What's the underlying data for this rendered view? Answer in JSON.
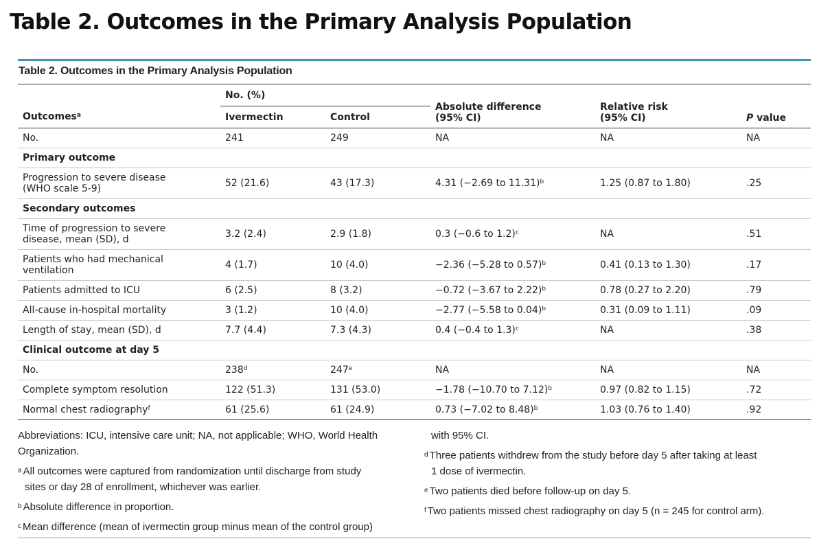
{
  "page_title": "Table 2.  Outcomes in the Primary Analysis Population",
  "caption": "Table 2. Outcomes in the Primary Analysis Population",
  "header": {
    "group_label": "No. (%)",
    "outcomes": "Outcomes",
    "outcomes_sup": "a",
    "ivermectin": "Ivermectin",
    "control": "Control",
    "absdiff_1": "Absolute difference",
    "absdiff_2": "(95% CI)",
    "rr_1": "Relative risk",
    "rr_2": "(95% CI)",
    "p_italic": "P",
    "p_rest": " value"
  },
  "rows": {
    "no": {
      "label": "No.",
      "iv": "241",
      "ctrl": "249",
      "diff": "NA",
      "rr": "NA",
      "p": "NA"
    },
    "primary_header": "Primary outcome",
    "progression": {
      "label1": "Progression to severe disease",
      "label2": "(WHO scale 5-9)",
      "iv": "52 (21.6)",
      "ctrl": "43 (17.3)",
      "diff": "4.31 (−2.69 to 11.31)",
      "diff_sup": "b",
      "rr": "1.25 (0.87 to 1.80)",
      "p": ".25"
    },
    "secondary_header": "Secondary outcomes",
    "time_prog": {
      "label1": "Time of progression to severe",
      "label2": "disease, mean (SD), d",
      "iv": "3.2 (2.4)",
      "ctrl": "2.9 (1.8)",
      "diff": "0.3 (−0.6 to 1.2)",
      "diff_sup": "c",
      "rr": "NA",
      "p": ".51"
    },
    "mech_vent": {
      "label1": "Patients who had mechanical",
      "label2": "ventilation",
      "iv": "4 (1.7)",
      "ctrl": "10 (4.0)",
      "diff": "−2.36 (−5.28 to 0.57)",
      "diff_sup": "b",
      "rr": "0.41 (0.13 to 1.30)",
      "p": ".17"
    },
    "icu": {
      "label": "Patients admitted to ICU",
      "iv": "6 (2.5)",
      "ctrl": "8 (3.2)",
      "diff": "−0.72 (−3.67 to 2.22)",
      "diff_sup": "b",
      "rr": "0.78 (0.27 to 2.20)",
      "p": ".79"
    },
    "mortality": {
      "label": "All-cause in-hospital mortality",
      "iv": "3 (1.2)",
      "ctrl": "10 (4.0)",
      "diff": "−2.77 (−5.58 to 0.04)",
      "diff_sup": "b",
      "rr": "0.31 (0.09 to 1.11)",
      "p": ".09"
    },
    "los": {
      "label": "Length of stay, mean (SD), d",
      "iv": "7.7 (4.4)",
      "ctrl": "7.3 (4.3)",
      "diff": "0.4 (−0.4 to 1.3)",
      "diff_sup": "c",
      "rr": "NA",
      "p": ".38"
    },
    "day5_header": "Clinical outcome at day 5",
    "day5_no": {
      "label": "No.",
      "iv": "238",
      "iv_sup": "d",
      "ctrl": "247",
      "ctrl_sup": "e",
      "diff": "NA",
      "rr": "NA",
      "p": "NA"
    },
    "symptom": {
      "label": "Complete symptom resolution",
      "iv": "122 (51.3)",
      "ctrl": "131 (53.0)",
      "diff": "−1.78 (−10.70 to 7.12)",
      "diff_sup": "b",
      "rr": "0.97 (0.82 to 1.15)",
      "p": ".72"
    },
    "xray": {
      "label": "Normal chest radiography",
      "label_sup": "f",
      "iv": "61 (25.6)",
      "ctrl": "61 (24.9)",
      "diff": "0.73 (−7.02 to 8.48)",
      "diff_sup": "b",
      "rr": "1.03 (0.76 to 1.40)",
      "p": ".92"
    }
  },
  "footnotes": {
    "abbrev_1": "Abbreviations: ICU, intensive care unit; NA, not applicable; WHO, World Health",
    "abbrev_2": "Organization.",
    "a_mark": "a",
    "a_1": "All outcomes were captured from randomization until discharge from study",
    "a_2": "sites or day 28 of enrollment, whichever was earlier.",
    "b_mark": "b",
    "b": "Absolute difference in proportion.",
    "c_mark": "c",
    "c_1": "Mean difference (mean of ivermectin group minus mean of the control group)",
    "c_2": "with 95% CI.",
    "d_mark": "d",
    "d_1": "Three patients withdrew from the study before day 5 after taking at least",
    "d_2": "1 dose of ivermectin.",
    "e_mark": "e",
    "e": "Two patients died before follow-up on day 5.",
    "f_mark": "f",
    "f": "Two patients missed chest radiography on day 5 (n = 245 for control arm)."
  },
  "colors": {
    "accent_bar": "#3a93b4",
    "rule": "#333333",
    "row_divider": "#c8c8c8"
  }
}
